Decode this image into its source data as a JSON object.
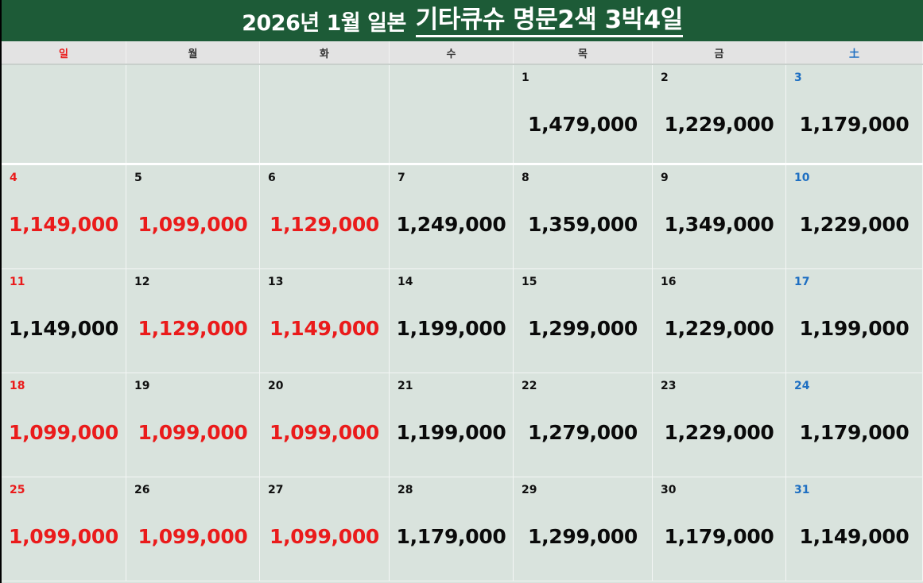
{
  "title": {
    "prefix": "2026년 1월 일본",
    "main": "기타큐슈 명문2색 3박4일"
  },
  "weekdays": [
    {
      "label": "일",
      "color": "red"
    },
    {
      "label": "월",
      "color": "black"
    },
    {
      "label": "화",
      "color": "black"
    },
    {
      "label": "수",
      "color": "black"
    },
    {
      "label": "목",
      "color": "black"
    },
    {
      "label": "금",
      "color": "black"
    },
    {
      "label": "土",
      "color": "blue"
    }
  ],
  "weeks": [
    [
      {
        "day": "",
        "price": "",
        "day_color": "red",
        "price_color": "black"
      },
      {
        "day": "",
        "price": "",
        "day_color": "black",
        "price_color": "black"
      },
      {
        "day": "",
        "price": "",
        "day_color": "black",
        "price_color": "black"
      },
      {
        "day": "",
        "price": "",
        "day_color": "black",
        "price_color": "black"
      },
      {
        "day": "1",
        "price": "1,479,000",
        "day_color": "black",
        "price_color": "black"
      },
      {
        "day": "2",
        "price": "1,229,000",
        "day_color": "black",
        "price_color": "black"
      },
      {
        "day": "3",
        "price": "1,179,000",
        "day_color": "blue",
        "price_color": "black"
      }
    ],
    [
      {
        "day": "4",
        "price": "1,149,000",
        "day_color": "red",
        "price_color": "red"
      },
      {
        "day": "5",
        "price": "1,099,000",
        "day_color": "black",
        "price_color": "red"
      },
      {
        "day": "6",
        "price": "1,129,000",
        "day_color": "black",
        "price_color": "red"
      },
      {
        "day": "7",
        "price": "1,249,000",
        "day_color": "black",
        "price_color": "black"
      },
      {
        "day": "8",
        "price": "1,359,000",
        "day_color": "black",
        "price_color": "black"
      },
      {
        "day": "9",
        "price": "1,349,000",
        "day_color": "black",
        "price_color": "black"
      },
      {
        "day": "10",
        "price": "1,229,000",
        "day_color": "blue",
        "price_color": "black"
      }
    ],
    [
      {
        "day": "11",
        "price": "1,149,000",
        "day_color": "red",
        "price_color": "black"
      },
      {
        "day": "12",
        "price": "1,129,000",
        "day_color": "black",
        "price_color": "red"
      },
      {
        "day": "13",
        "price": "1,149,000",
        "day_color": "black",
        "price_color": "red"
      },
      {
        "day": "14",
        "price": "1,199,000",
        "day_color": "black",
        "price_color": "black"
      },
      {
        "day": "15",
        "price": "1,299,000",
        "day_color": "black",
        "price_color": "black"
      },
      {
        "day": "16",
        "price": "1,229,000",
        "day_color": "black",
        "price_color": "black"
      },
      {
        "day": "17",
        "price": "1,199,000",
        "day_color": "blue",
        "price_color": "black"
      }
    ],
    [
      {
        "day": "18",
        "price": "1,099,000",
        "day_color": "red",
        "price_color": "red"
      },
      {
        "day": "19",
        "price": "1,099,000",
        "day_color": "black",
        "price_color": "red"
      },
      {
        "day": "20",
        "price": "1,099,000",
        "day_color": "black",
        "price_color": "red"
      },
      {
        "day": "21",
        "price": "1,199,000",
        "day_color": "black",
        "price_color": "black"
      },
      {
        "day": "22",
        "price": "1,279,000",
        "day_color": "black",
        "price_color": "black"
      },
      {
        "day": "23",
        "price": "1,229,000",
        "day_color": "black",
        "price_color": "black"
      },
      {
        "day": "24",
        "price": "1,179,000",
        "day_color": "blue",
        "price_color": "black"
      }
    ],
    [
      {
        "day": "25",
        "price": "1,099,000",
        "day_color": "red",
        "price_color": "red"
      },
      {
        "day": "26",
        "price": "1,099,000",
        "day_color": "black",
        "price_color": "red"
      },
      {
        "day": "27",
        "price": "1,099,000",
        "day_color": "black",
        "price_color": "red"
      },
      {
        "day": "28",
        "price": "1,179,000",
        "day_color": "black",
        "price_color": "black"
      },
      {
        "day": "29",
        "price": "1,299,000",
        "day_color": "black",
        "price_color": "black"
      },
      {
        "day": "30",
        "price": "1,179,000",
        "day_color": "black",
        "price_color": "black"
      },
      {
        "day": "31",
        "price": "1,149,000",
        "day_color": "blue",
        "price_color": "black"
      }
    ]
  ],
  "colors": {
    "header_bg": "#1d5b37",
    "calendar_bg": "#d9e3dd",
    "sunday_red": "#ea1b1b",
    "saturday_blue": "#1e6fc2"
  }
}
